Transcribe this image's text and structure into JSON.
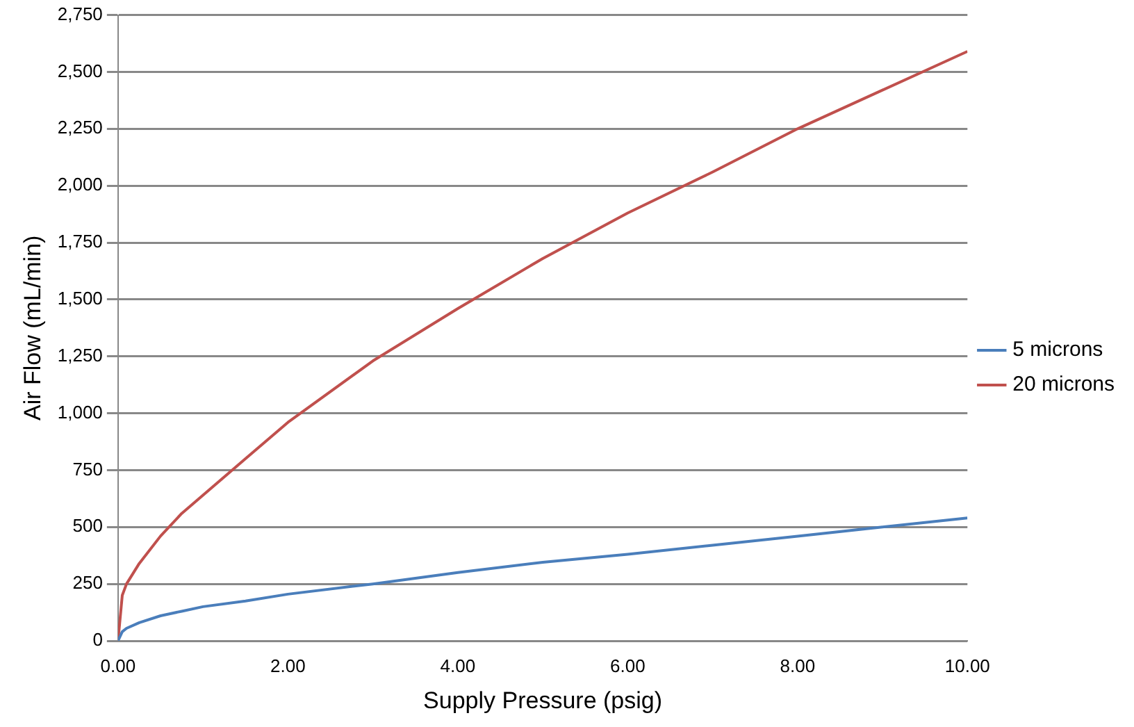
{
  "chart_data": {
    "type": "line",
    "xlabel": "Supply Pressure (psig)",
    "ylabel": "Air Flow (mL/min)",
    "x": [
      0,
      0.05,
      0.1,
      0.25,
      0.5,
      0.75,
      1,
      1.5,
      2,
      3,
      4,
      5,
      6,
      7,
      8,
      9,
      10
    ],
    "series": [
      {
        "name": "5 microns",
        "color": "#4a7ebb",
        "values": [
          0,
          40,
          55,
          80,
          110,
          130,
          150,
          175,
          205,
          250,
          300,
          345,
          380,
          420,
          460,
          500,
          540
        ]
      },
      {
        "name": "20 microns",
        "color": "#c0504d",
        "values": [
          0,
          200,
          250,
          340,
          460,
          560,
          640,
          800,
          960,
          1230,
          1460,
          1680,
          1880,
          2060,
          2250,
          2420,
          2590
        ]
      }
    ],
    "xlim": [
      0,
      10
    ],
    "xticks": [
      {
        "value": 0,
        "label": "0.00"
      },
      {
        "value": 2,
        "label": "2.00"
      },
      {
        "value": 4,
        "label": "4.00"
      },
      {
        "value": 6,
        "label": "6.00"
      },
      {
        "value": 8,
        "label": "8.00"
      },
      {
        "value": 10,
        "label": "10.00"
      }
    ],
    "ylim": [
      0,
      2750
    ],
    "yticks": [
      0,
      250,
      500,
      750,
      {
        "value": 1000,
        "label": "1,000"
      },
      {
        "value": 1250,
        "label": "1,250"
      },
      {
        "value": 1500,
        "label": "1,500"
      },
      {
        "value": 1750,
        "label": "1,750"
      },
      {
        "value": 2000,
        "label": "2,000"
      },
      {
        "value": 2250,
        "label": "2,250"
      },
      {
        "value": 2500,
        "label": "2,500"
      },
      {
        "value": 2750,
        "label": "2,750"
      }
    ],
    "grid": "y",
    "legend": "right",
    "marker": "none",
    "line_style": "solid"
  }
}
